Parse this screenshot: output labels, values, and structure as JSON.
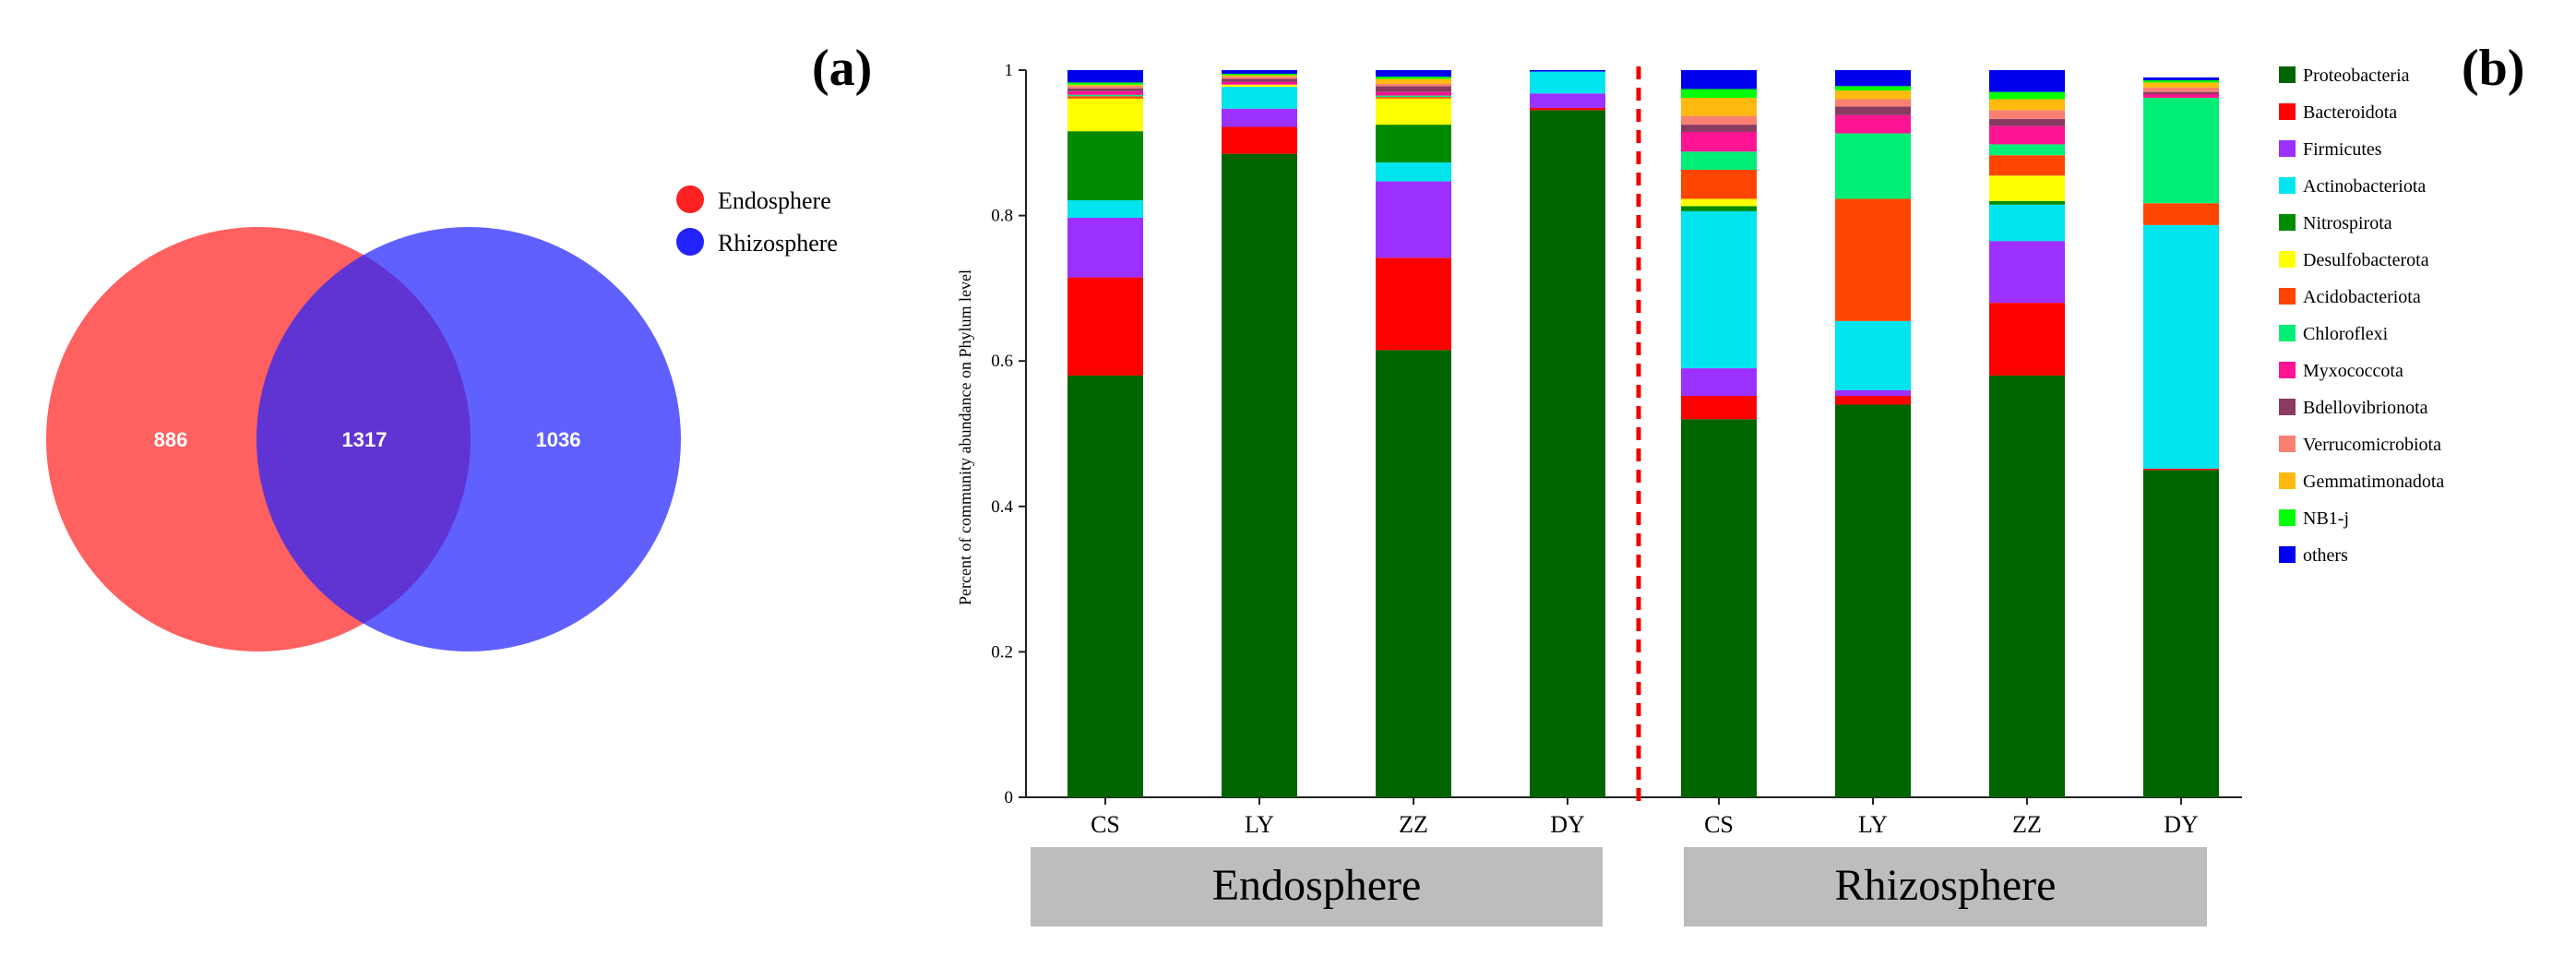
{
  "panel_labels": {
    "a": "(a)",
    "b": "(b)"
  },
  "chart_data": [
    {
      "type": "venn",
      "sets": [
        {
          "name": "Endosphere",
          "color": "#ff2222",
          "only": 886
        },
        {
          "name": "Rhizosphere",
          "color": "#2222ff",
          "only": 1036
        }
      ],
      "intersection": 1317
    },
    {
      "type": "bar",
      "stacked": true,
      "ylabel": "Percent of community abundance on Phylum level",
      "ylim": [
        0,
        1
      ],
      "yticks": [
        "0",
        "0.2",
        "0.4",
        "0.6",
        "0.8",
        "1"
      ],
      "categories": [
        "CS",
        "LY",
        "ZZ",
        "DY",
        "CS",
        "LY",
        "ZZ",
        "DY"
      ],
      "groups": [
        {
          "name": "Endosphere",
          "span": [
            0,
            3
          ]
        },
        {
          "name": "Rhizosphere",
          "span": [
            4,
            7
          ]
        }
      ],
      "separator": "red dashed line between Endosphere and Rhizosphere",
      "series": [
        {
          "name": "Proteobacteria",
          "color": "#006400",
          "values": [
            0.58,
            0.885,
            0.615,
            0.945,
            0.52,
            0.54,
            0.58,
            0.45
          ]
        },
        {
          "name": "Bacteroidota",
          "color": "#ff0000",
          "values": [
            0.135,
            0.037,
            0.127,
            0.003,
            0.032,
            0.012,
            0.1,
            0.002
          ]
        },
        {
          "name": "Firmicutes",
          "color": "#9b30ff",
          "values": [
            0.082,
            0.025,
            0.105,
            0.02,
            0.038,
            0.008,
            0.085,
            0.0
          ]
        },
        {
          "name": "Actinobacteriota",
          "color": "#00e5ee",
          "values": [
            0.024,
            0.03,
            0.026,
            0.03,
            0.216,
            0.095,
            0.05,
            0.335
          ]
        },
        {
          "name": "Nitrospirota",
          "color": "#008b00",
          "values": [
            0.095,
            0.0,
            0.052,
            0.0,
            0.007,
            0.0,
            0.005,
            0.0
          ]
        },
        {
          "name": "Desulfobacterota",
          "color": "#ffff00",
          "values": [
            0.045,
            0.003,
            0.036,
            0.0,
            0.01,
            0.0,
            0.035,
            0.0
          ]
        },
        {
          "name": "Acidobacteriota",
          "color": "#ff4500",
          "values": [
            0.003,
            0.0,
            0.002,
            0.0,
            0.04,
            0.168,
            0.028,
            0.03
          ]
        },
        {
          "name": "Chloroflexi",
          "color": "#00ee76",
          "values": [
            0.002,
            0.0,
            0.002,
            0.0,
            0.025,
            0.09,
            0.015,
            0.145
          ]
        },
        {
          "name": "Myxococcota",
          "color": "#ff1493",
          "values": [
            0.005,
            0.004,
            0.005,
            0.0,
            0.027,
            0.025,
            0.025,
            0.005
          ]
        },
        {
          "name": "Bdellovibrionota",
          "color": "#8b3a62",
          "values": [
            0.004,
            0.004,
            0.008,
            0.0,
            0.01,
            0.012,
            0.01,
            0.003
          ]
        },
        {
          "name": "Verrucomicrobiota",
          "color": "#fa8072",
          "values": [
            0.003,
            0.003,
            0.003,
            0.0,
            0.012,
            0.01,
            0.012,
            0.006
          ]
        },
        {
          "name": "Gemmatimonadota",
          "color": "#ffb90f",
          "values": [
            0.002,
            0.002,
            0.007,
            0.0,
            0.025,
            0.012,
            0.015,
            0.007
          ]
        },
        {
          "name": "NB1-j",
          "color": "#00ff00",
          "values": [
            0.003,
            0.002,
            0.003,
            0.0,
            0.012,
            0.006,
            0.01,
            0.003
          ]
        },
        {
          "name": "others",
          "color": "#0000ee",
          "values": [
            0.017,
            0.005,
            0.009,
            0.002,
            0.026,
            0.022,
            0.03,
            0.004
          ]
        }
      ]
    }
  ]
}
